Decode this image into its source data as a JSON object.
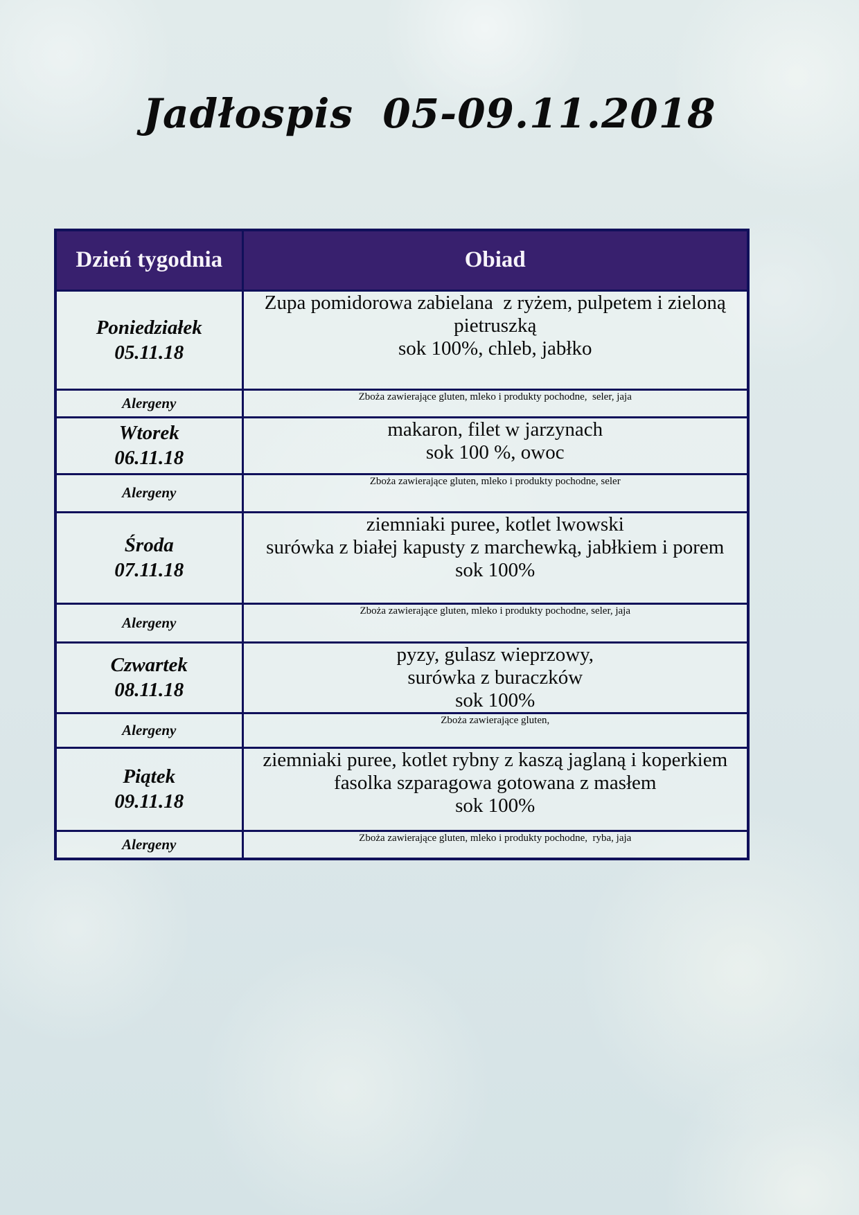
{
  "title": "Jadłospis  05-09.11.2018",
  "table": {
    "header": {
      "day_col": "Dzień tygodnia",
      "meal_col": "Obiad"
    },
    "allergens_label": "Alergeny",
    "days": [
      {
        "name": "Poniedziałek",
        "date": "05.11.18",
        "menu_lines": [
          "Zupa pomidorowa zabielana  z ryżem, pulpetem i zieloną",
          "pietruszką",
          "sok 100%, chleb, jabłko"
        ],
        "allergens": "Zboża zawierające gluten, mleko i produkty pochodne,  seler, jaja"
      },
      {
        "name": "Wtorek",
        "date": "06.11.18",
        "menu_lines": [
          "makaron, filet w jarzynach",
          "sok 100 %, owoc"
        ],
        "allergens": "Zboża zawierające gluten, mleko i produkty pochodne, seler"
      },
      {
        "name": "Środa",
        "date": "07.11.18",
        "menu_lines": [
          "ziemniaki puree, kotlet lwowski",
          "surówka z białej kapusty z marchewką, jabłkiem i porem",
          "sok 100%"
        ],
        "allergens": "Zboża zawierające gluten, mleko i produkty pochodne, seler, jaja"
      },
      {
        "name": "Czwartek",
        "date": "08.11.18",
        "menu_lines": [
          "pyzy, gulasz wieprzowy,",
          "surówka z buraczków",
          "sok 100%"
        ],
        "allergens": "Zboża zawierające gluten,"
      },
      {
        "name": "Piątek",
        "date": "09.11.18",
        "menu_lines": [
          "ziemniaki puree, kotlet rybny z kaszą jaglaną i koperkiem",
          "fasolka szparagowa gotowana z masłem",
          "sok 100%"
        ],
        "allergens": "Zboża zawierające gluten, mleko i produkty pochodne,  ryba, jaja"
      }
    ]
  },
  "colors": {
    "header_bg": "#38206e",
    "border": "#10105a",
    "header_text": "#f7f4fa",
    "body_text": "#0a0a0a",
    "page_bg": "#dde8e9"
  }
}
